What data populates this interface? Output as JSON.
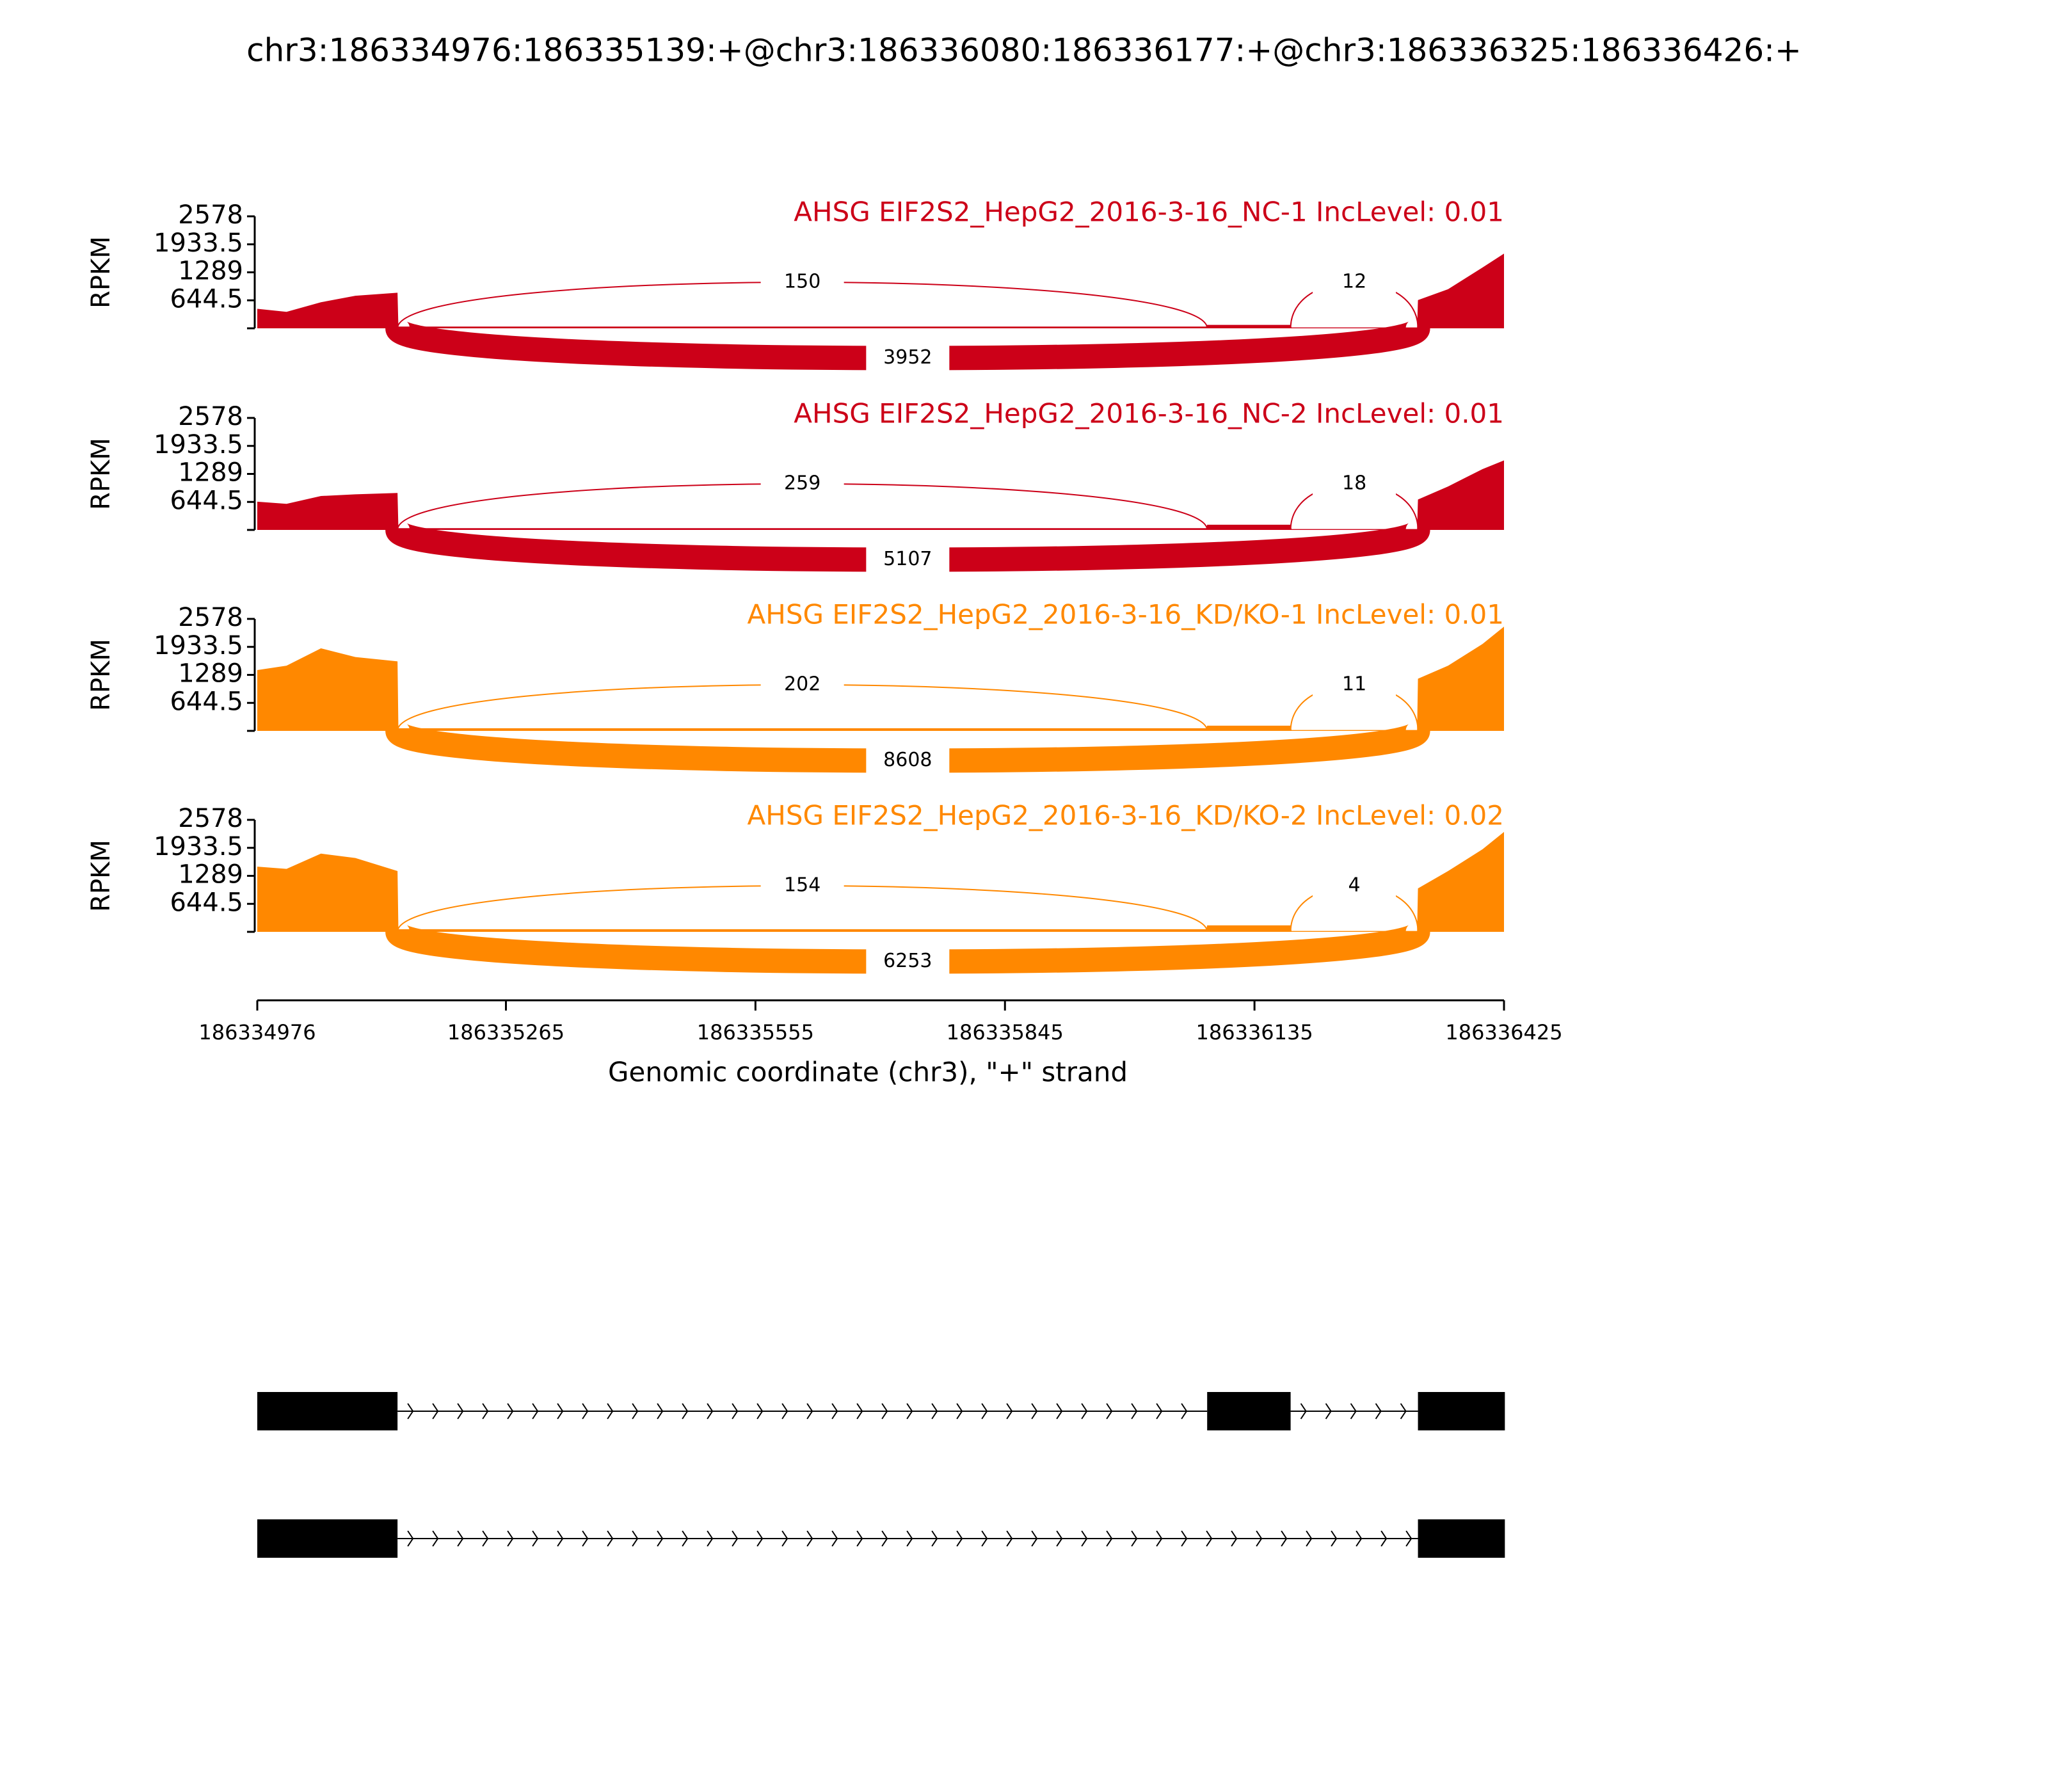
{
  "chart_data": {
    "type": "sashimi",
    "title": "chr3:186334976:186335139:+@chr3:186336080:186336177:+@chr3:186336325:186336426:+",
    "xlabel": "Genomic coordinate (chr3), \"+\" strand",
    "ylabel": "RPKM",
    "xlim": [
      186334976,
      186336425
    ],
    "xticks": [
      186334976,
      186335265,
      186335555,
      186335845,
      186336135,
      186336425
    ],
    "ylim": [
      0,
      2578
    ],
    "yticks": [
      644.5,
      1289,
      1933.5,
      2578
    ],
    "coverage_x": [
      186334976,
      186335010,
      186335050,
      186335090,
      186335139,
      186335140,
      186336079,
      186336080,
      186336177,
      186336178,
      186336324,
      186336325,
      186336360,
      186336400,
      186336425
    ],
    "junctions": [
      {
        "start": 186335139,
        "end": 186336080
      },
      {
        "start": 186336177,
        "end": 186336325
      },
      {
        "start": 186335139,
        "end": 186336325
      }
    ],
    "panels": [
      {
        "label": "AHSG EIF2S2_HepG2_2016-3-16_NC-1 IncLevel: 0.01",
        "color": "#cc0018",
        "coverage": [
          450,
          380,
          600,
          750,
          820,
          40,
          40,
          80,
          80,
          20,
          20,
          650,
          900,
          1400,
          1720
        ],
        "junction_counts": [
          150,
          12,
          3952
        ]
      },
      {
        "label": "AHSG EIF2S2_HepG2_2016-3-16_NC-2 IncLevel: 0.01",
        "color": "#cc0018",
        "coverage": [
          650,
          600,
          780,
          820,
          850,
          40,
          40,
          120,
          120,
          20,
          20,
          700,
          1000,
          1400,
          1600
        ],
        "junction_counts": [
          259,
          18,
          5107
        ]
      },
      {
        "label": "AHSG EIF2S2_HepG2_2016-3-16_KD/KO-1 IncLevel: 0.01",
        "color": "#ff8800",
        "coverage": [
          1400,
          1500,
          1900,
          1700,
          1600,
          60,
          60,
          120,
          120,
          20,
          20,
          1200,
          1500,
          2000,
          2400
        ],
        "junction_counts": [
          202,
          11,
          8608
        ]
      },
      {
        "label": "AHSG EIF2S2_HepG2_2016-3-16_KD/KO-2 IncLevel: 0.02",
        "color": "#ff8800",
        "coverage": [
          1500,
          1450,
          1800,
          1700,
          1400,
          60,
          60,
          150,
          150,
          20,
          20,
          1000,
          1400,
          1900,
          2300
        ],
        "junction_counts": [
          154,
          4,
          6253
        ]
      }
    ],
    "transcripts": [
      [
        [
          186334976,
          186335139
        ],
        [
          186336080,
          186336177
        ],
        [
          186336325,
          186336426
        ]
      ],
      [
        [
          186334976,
          186335139
        ],
        [
          186336325,
          186336426
        ]
      ]
    ]
  }
}
